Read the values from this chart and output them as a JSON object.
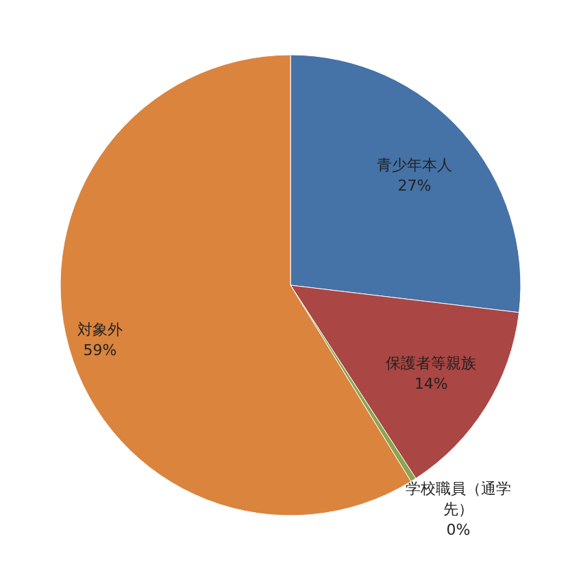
{
  "chart_data": {
    "type": "pie",
    "categories": [
      "青少年本人",
      "保護者等親族",
      "学校職員（通学先）",
      "対象外"
    ],
    "values": [
      27,
      14,
      0.4,
      59
    ],
    "colors": [
      "#4572a7",
      "#aa4643",
      "#89a54e",
      "#db843d"
    ],
    "value_labels": [
      "27%",
      "14%",
      "0%",
      "59%"
    ]
  }
}
